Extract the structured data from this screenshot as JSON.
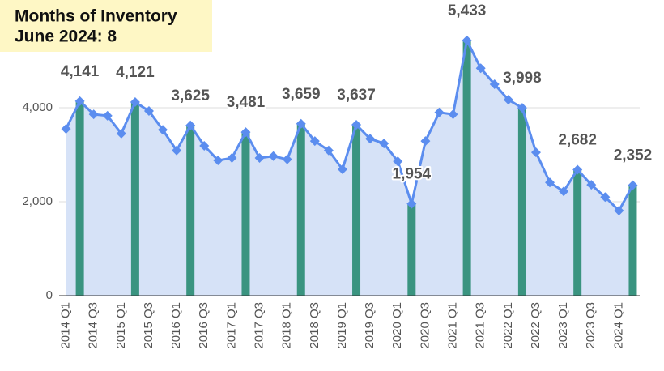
{
  "chart_data": {
    "type": "area",
    "title": "Months of Inventory",
    "subtitle": "June 2024: 8",
    "categories": [
      "2014 Q1",
      null,
      "2014 Q3",
      null,
      "2015 Q1",
      null,
      "2015 Q3",
      null,
      "2016 Q1",
      null,
      "2016 Q3",
      null,
      "2017 Q1",
      null,
      "2017 Q3",
      null,
      "2018 Q1",
      null,
      "2018 Q3",
      null,
      "2019 Q1",
      null,
      "2019 Q3",
      null,
      "2020 Q1",
      null,
      "2020 Q3",
      null,
      "2021 Q1",
      null,
      "2021 Q3",
      null,
      "2022 Q1",
      null,
      "2022 Q3",
      null,
      "2023 Q1",
      null,
      "2023 Q3",
      null,
      "2024 Q1",
      null
    ],
    "values": [
      3550,
      4141,
      3860,
      3830,
      3450,
      4121,
      3930,
      3530,
      3090,
      3625,
      3190,
      2880,
      2930,
      3481,
      2930,
      2970,
      2900,
      3659,
      3290,
      3090,
      2690,
      3637,
      3340,
      3240,
      2860,
      1954,
      3290,
      3900,
      3860,
      5433,
      4840,
      4500,
      4170,
      3998,
      3050,
      2410,
      2220,
      2682,
      2360,
      2100,
      1810,
      2352
    ],
    "value_labels": [
      null,
      "4,141",
      null,
      null,
      null,
      "4,121",
      null,
      null,
      null,
      "3,625",
      null,
      null,
      null,
      "3,481",
      null,
      null,
      null,
      "3,659",
      null,
      null,
      null,
      "3,637",
      null,
      null,
      null,
      "1,954",
      null,
      null,
      null,
      "5,433",
      null,
      null,
      null,
      "3,998",
      null,
      null,
      null,
      "2,682",
      null,
      null,
      null,
      "2,352"
    ],
    "color": "#5b8def",
    "area_color": "#d6e2f7",
    "bar_color": "#3a9480",
    "ylim": [
      0,
      6000
    ],
    "yticks": [
      0,
      {
        "value": 2000,
        "label": "2,000"
      },
      {
        "value": 4000,
        "label": "4,000"
      }
    ],
    "grid": true
  }
}
